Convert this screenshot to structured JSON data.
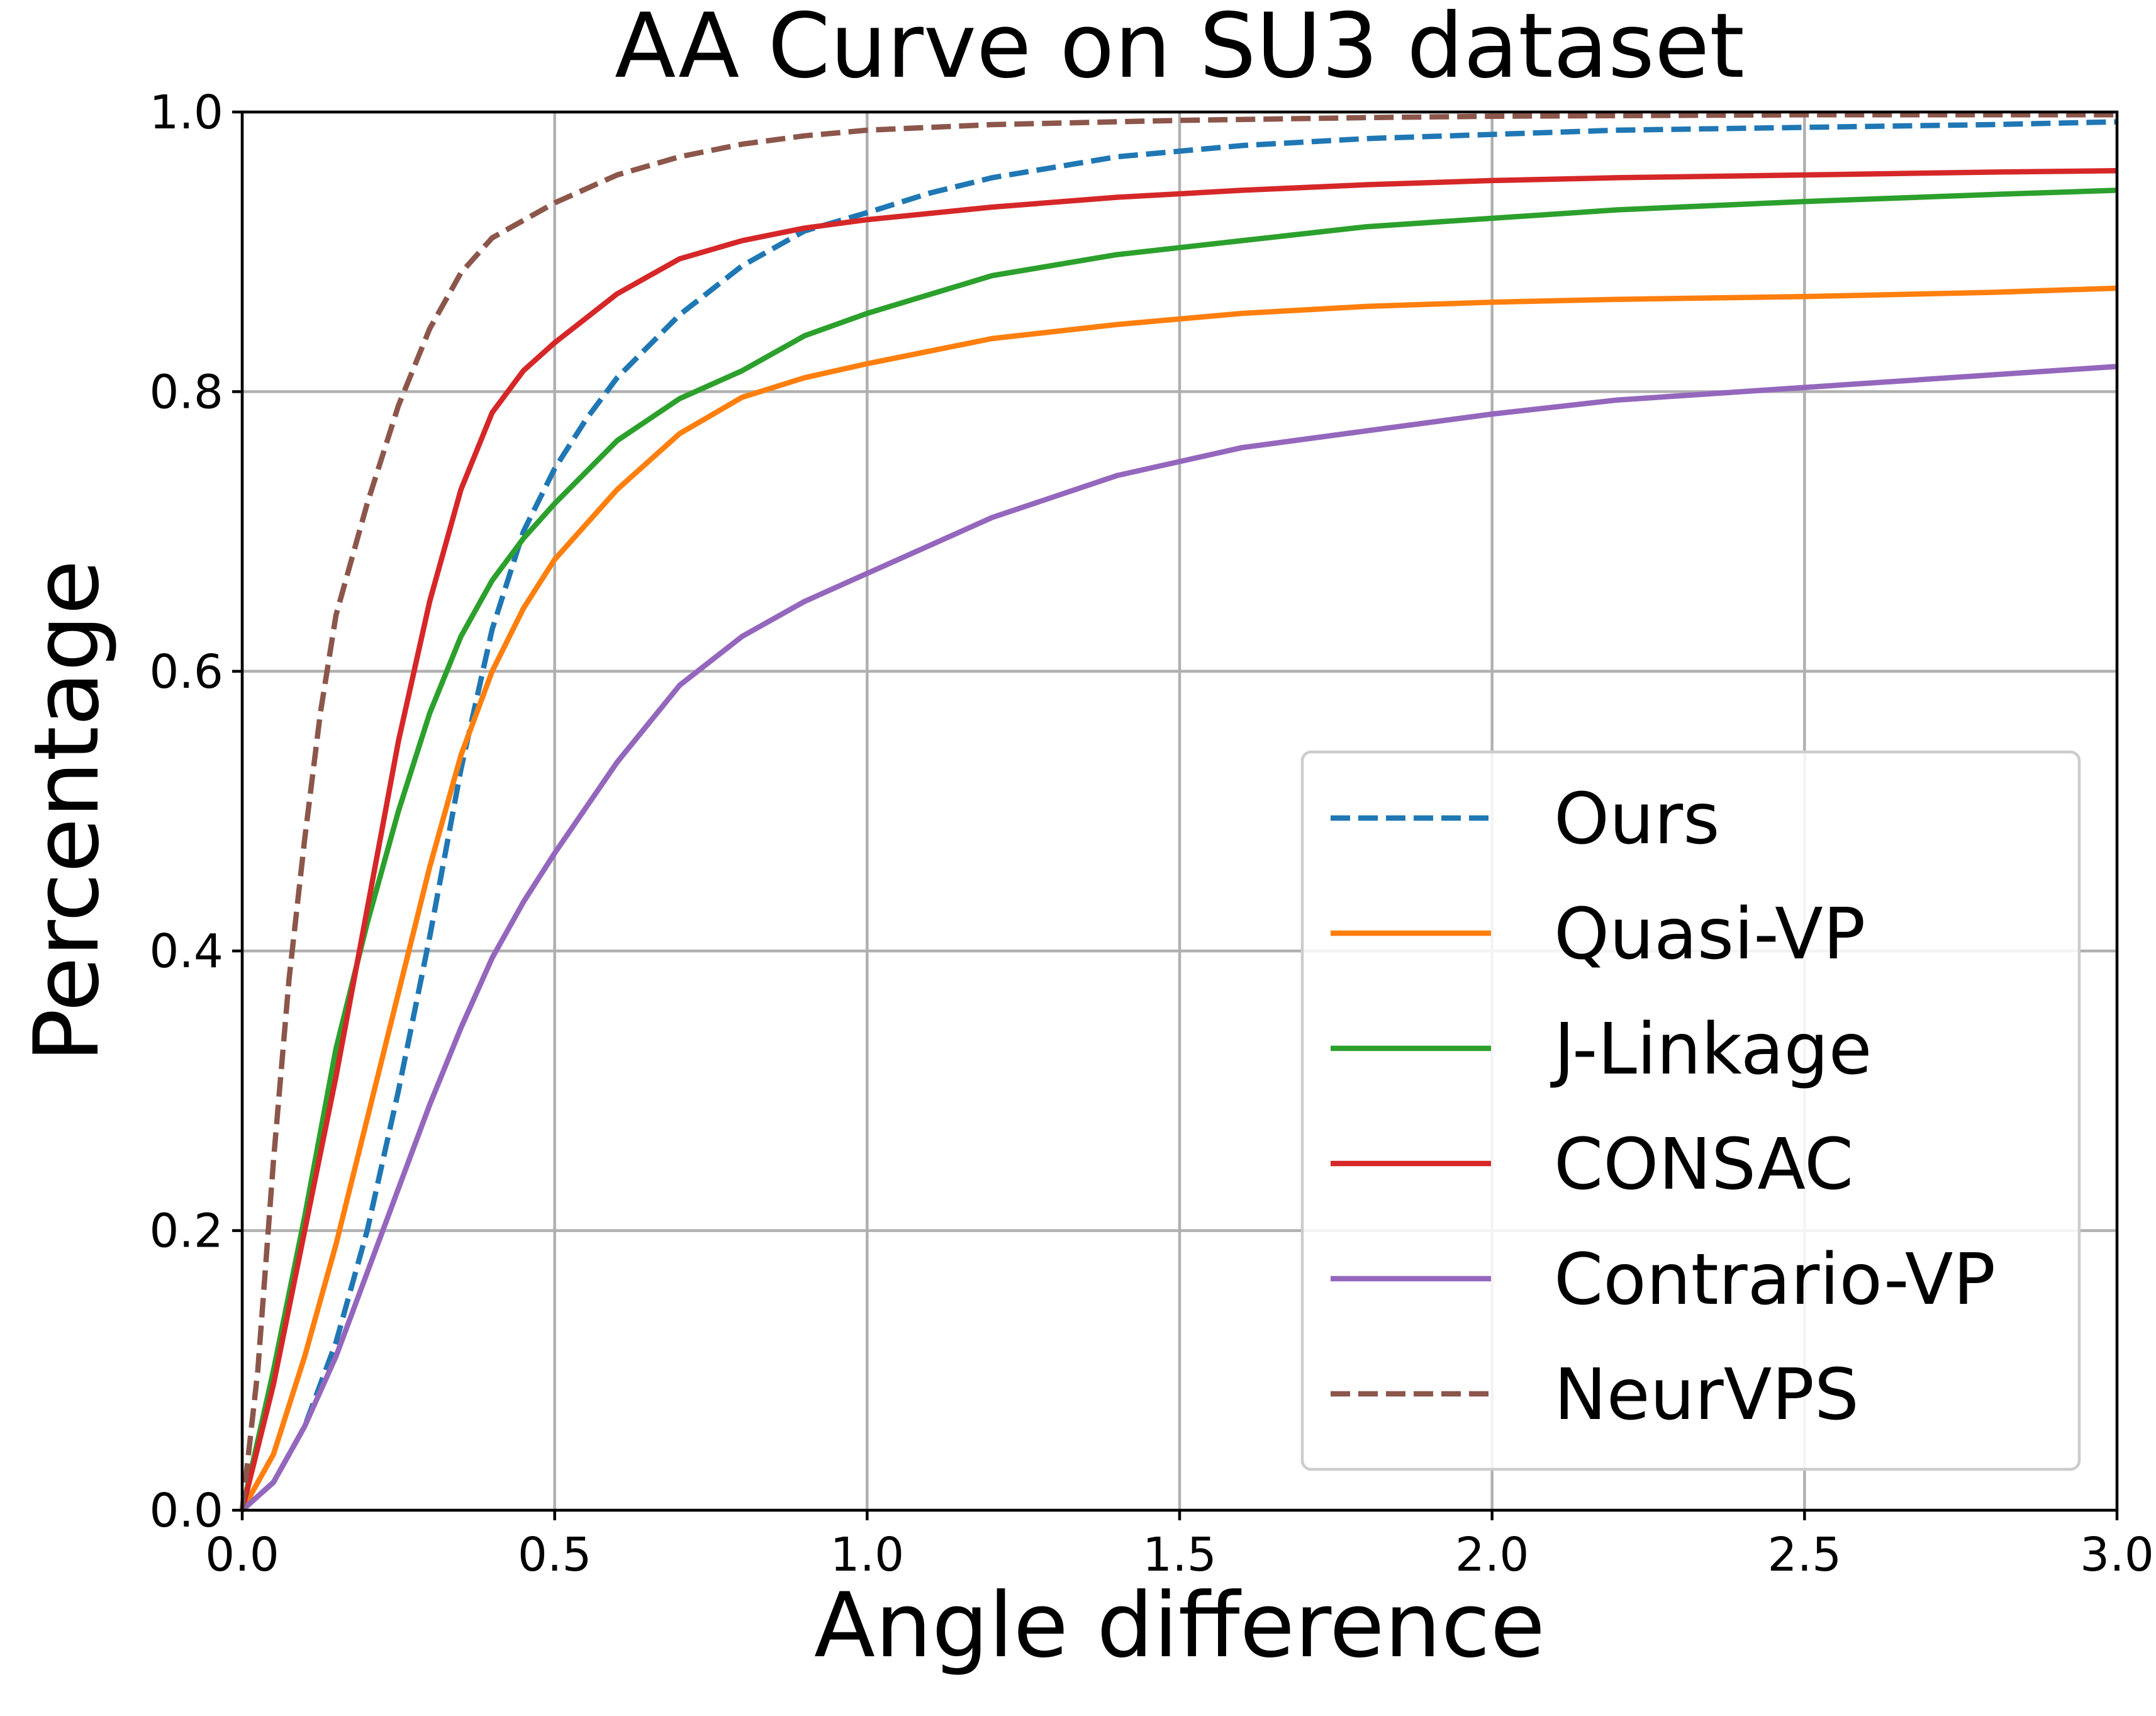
{
  "chart_data": {
    "type": "line",
    "title": "AA Curve on SU3 dataset",
    "xlabel": "Angle difference",
    "ylabel": "Percentage",
    "xlim": [
      0.0,
      3.0
    ],
    "ylim": [
      0.0,
      1.0
    ],
    "xticks": [
      "0.0",
      "0.5",
      "1.0",
      "1.5",
      "2.0",
      "2.5",
      "3.0"
    ],
    "yticks": [
      "0.0",
      "0.2",
      "0.4",
      "0.6",
      "0.8",
      "1.0"
    ],
    "grid": true,
    "legend_position": "lower-right",
    "series": [
      {
        "name": "Ours",
        "color": "#1f77b4",
        "dashed": true,
        "x": [
          0.0,
          0.05,
          0.1,
          0.15,
          0.2,
          0.25,
          0.3,
          0.35,
          0.4,
          0.45,
          0.5,
          0.55,
          0.6,
          0.7,
          0.8,
          0.9,
          1.0,
          1.1,
          1.2,
          1.4,
          1.6,
          1.8,
          2.0,
          2.2,
          2.5,
          2.8,
          3.0
        ],
        "y": [
          0.0,
          0.02,
          0.06,
          0.12,
          0.2,
          0.3,
          0.41,
          0.53,
          0.63,
          0.7,
          0.745,
          0.78,
          0.81,
          0.855,
          0.89,
          0.915,
          0.928,
          0.942,
          0.953,
          0.968,
          0.976,
          0.981,
          0.984,
          0.987,
          0.989,
          0.991,
          0.993
        ]
      },
      {
        "name": "Quasi-VP",
        "color": "#ff7f0e",
        "dashed": false,
        "x": [
          0.0,
          0.05,
          0.1,
          0.15,
          0.2,
          0.25,
          0.3,
          0.35,
          0.4,
          0.45,
          0.5,
          0.6,
          0.7,
          0.8,
          0.9,
          1.0,
          1.2,
          1.4,
          1.6,
          1.8,
          2.0,
          2.2,
          2.5,
          2.8,
          3.0
        ],
        "y": [
          0.0,
          0.04,
          0.11,
          0.19,
          0.28,
          0.37,
          0.46,
          0.54,
          0.6,
          0.645,
          0.68,
          0.73,
          0.77,
          0.796,
          0.81,
          0.82,
          0.838,
          0.848,
          0.856,
          0.861,
          0.864,
          0.866,
          0.868,
          0.871,
          0.874
        ]
      },
      {
        "name": "J-Linkage",
        "color": "#2ca02c",
        "dashed": false,
        "x": [
          0.0,
          0.05,
          0.1,
          0.15,
          0.2,
          0.25,
          0.3,
          0.35,
          0.4,
          0.45,
          0.5,
          0.6,
          0.7,
          0.8,
          0.9,
          1.0,
          1.2,
          1.4,
          1.6,
          1.8,
          2.0,
          2.2,
          2.5,
          2.8,
          3.0
        ],
        "y": [
          0.0,
          0.1,
          0.21,
          0.33,
          0.42,
          0.5,
          0.57,
          0.625,
          0.665,
          0.695,
          0.72,
          0.765,
          0.795,
          0.815,
          0.84,
          0.856,
          0.883,
          0.898,
          0.908,
          0.918,
          0.924,
          0.93,
          0.936,
          0.941,
          0.944
        ]
      },
      {
        "name": "CONSAC",
        "color": "#d62728",
        "dashed": false,
        "x": [
          0.0,
          0.05,
          0.1,
          0.15,
          0.2,
          0.25,
          0.3,
          0.35,
          0.4,
          0.45,
          0.5,
          0.6,
          0.7,
          0.8,
          0.9,
          1.0,
          1.2,
          1.4,
          1.6,
          1.8,
          2.0,
          2.2,
          2.5,
          2.8,
          3.0
        ],
        "y": [
          0.0,
          0.09,
          0.2,
          0.31,
          0.43,
          0.55,
          0.65,
          0.73,
          0.785,
          0.815,
          0.835,
          0.87,
          0.895,
          0.908,
          0.917,
          0.923,
          0.932,
          0.939,
          0.944,
          0.948,
          0.951,
          0.953,
          0.955,
          0.957,
          0.958
        ]
      },
      {
        "name": "Contrario-VP",
        "color": "#9467bd",
        "dashed": false,
        "x": [
          0.0,
          0.05,
          0.1,
          0.15,
          0.2,
          0.25,
          0.3,
          0.35,
          0.4,
          0.45,
          0.5,
          0.6,
          0.7,
          0.8,
          0.9,
          1.0,
          1.2,
          1.4,
          1.6,
          1.8,
          2.0,
          2.2,
          2.5,
          2.8,
          3.0
        ],
        "y": [
          0.0,
          0.02,
          0.06,
          0.11,
          0.17,
          0.23,
          0.29,
          0.345,
          0.395,
          0.435,
          0.47,
          0.535,
          0.59,
          0.625,
          0.65,
          0.67,
          0.71,
          0.74,
          0.76,
          0.772,
          0.784,
          0.794,
          0.803,
          0.812,
          0.818
        ]
      },
      {
        "name": "NeurVPS",
        "color": "#8c564b",
        "dashed": true,
        "x": [
          0.0,
          0.025,
          0.05,
          0.075,
          0.1,
          0.125,
          0.15,
          0.2,
          0.25,
          0.3,
          0.35,
          0.4,
          0.5,
          0.6,
          0.7,
          0.8,
          0.9,
          1.0,
          1.2,
          1.5,
          1.8,
          2.0,
          2.5,
          3.0
        ],
        "y": [
          0.0,
          0.1,
          0.25,
          0.38,
          0.48,
          0.57,
          0.64,
          0.72,
          0.79,
          0.845,
          0.885,
          0.91,
          0.935,
          0.955,
          0.968,
          0.977,
          0.983,
          0.987,
          0.991,
          0.994,
          0.996,
          0.997,
          0.998,
          0.998
        ]
      }
    ]
  }
}
